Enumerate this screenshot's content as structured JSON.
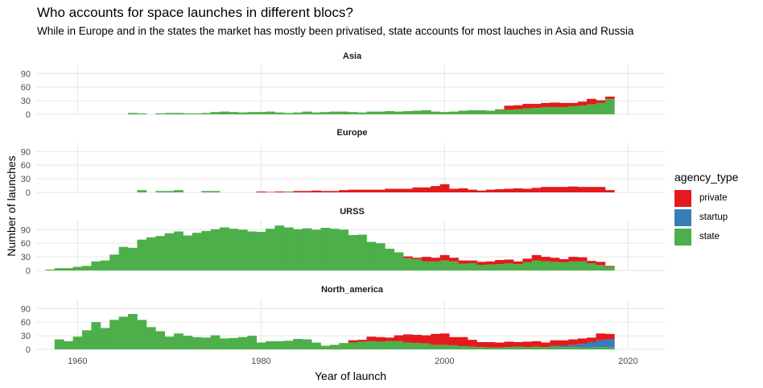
{
  "title": "Who accounts for space launches in different blocs?",
  "subtitle": "While in Europe and in the states the market has mostly been privatised, state accounts for most lauches in Asia and Russia",
  "colors": {
    "private": "#E41A1C",
    "startup": "#377EB8",
    "state": "#4DAF4A"
  },
  "chart_data": {
    "type": "bar",
    "stacked": true,
    "xlabel": "Year of launch",
    "ylabel": "Number of launches",
    "x_ticks": [
      1960,
      1980,
      2000,
      2020
    ],
    "y_ticks": [
      0,
      30,
      60,
      90
    ],
    "xlim": [
      1955.5,
      2024
    ],
    "ylim": [
      0,
      110
    ],
    "legend": {
      "title": "agency_type",
      "position": "right",
      "entries": [
        "private",
        "startup",
        "state"
      ]
    },
    "years": [
      1957,
      1958,
      1959,
      1960,
      1961,
      1962,
      1963,
      1964,
      1965,
      1966,
      1967,
      1968,
      1969,
      1970,
      1971,
      1972,
      1973,
      1974,
      1975,
      1976,
      1977,
      1978,
      1979,
      1980,
      1981,
      1982,
      1983,
      1984,
      1985,
      1986,
      1987,
      1988,
      1989,
      1990,
      1991,
      1992,
      1993,
      1994,
      1995,
      1996,
      1997,
      1998,
      1999,
      2000,
      2001,
      2002,
      2003,
      2004,
      2005,
      2006,
      2007,
      2008,
      2009,
      2010,
      2011,
      2012,
      2013,
      2014,
      2015,
      2016,
      2017,
      2018
    ],
    "panels": [
      {
        "name": "Asia",
        "series": [
          {
            "name": "state",
            "values": [
              0,
              0,
              0,
              0,
              0,
              0,
              0,
              0,
              0,
              3,
              2,
              0,
              2,
              3,
              3,
              2,
              2,
              3,
              5,
              6,
              5,
              4,
              5,
              5,
              6,
              4,
              3,
              4,
              6,
              4,
              5,
              6,
              6,
              5,
              4,
              6,
              6,
              7,
              6,
              7,
              8,
              9,
              6,
              5,
              6,
              8,
              9,
              9,
              8,
              10,
              10,
              11,
              13,
              14,
              16,
              16,
              16,
              18,
              19,
              22,
              25,
              34
            ]
          },
          {
            "name": "private",
            "values": [
              0,
              0,
              0,
              0,
              0,
              0,
              0,
              0,
              0,
              0,
              0,
              0,
              0,
              0,
              0,
              0,
              0,
              0,
              0,
              0,
              0,
              0,
              0,
              0,
              0,
              0,
              0,
              0,
              0,
              0,
              0,
              0,
              0,
              0,
              0,
              0,
              0,
              0,
              0,
              0,
              0,
              0,
              0,
              0,
              0,
              0,
              0,
              0,
              0,
              1,
              9,
              9,
              10,
              9,
              9,
              10,
              9,
              7,
              9,
              12,
              6,
              5
            ]
          },
          {
            "name": "startup",
            "values": [
              0,
              0,
              0,
              0,
              0,
              0,
              0,
              0,
              0,
              0,
              0,
              0,
              0,
              0,
              0,
              0,
              0,
              0,
              0,
              0,
              0,
              0,
              0,
              0,
              0,
              0,
              0,
              0,
              0,
              0,
              0,
              0,
              0,
              0,
              0,
              0,
              0,
              0,
              0,
              0,
              0,
              0,
              0,
              0,
              0,
              0,
              0,
              0,
              0,
              0,
              0,
              0,
              0,
              0,
              0,
              0,
              0,
              0,
              0,
              0,
              0,
              0
            ]
          }
        ]
      },
      {
        "name": "Europe",
        "series": [
          {
            "name": "state",
            "values": [
              0,
              0,
              0,
              0,
              0,
              0,
              0,
              0,
              0,
              0,
              5,
              0,
              3,
              3,
              5,
              0,
              0,
              3,
              3,
              0,
              0,
              0,
              0,
              0,
              0,
              0,
              2,
              0,
              0,
              0,
              0,
              0,
              0,
              0,
              0,
              0,
              0,
              0,
              0,
              0,
              0,
              0,
              0,
              0,
              0,
              0,
              0,
              0,
              0,
              0,
              0,
              0,
              0,
              0,
              0,
              0,
              0,
              0,
              0,
              0,
              0,
              0
            ]
          },
          {
            "name": "private",
            "values": [
              0,
              0,
              0,
              0,
              0,
              0,
              0,
              0,
              0,
              0,
              0,
              0,
              0,
              0,
              0,
              0,
              0,
              0,
              0,
              0,
              0,
              0,
              0,
              2,
              1,
              2,
              0,
              3,
              3,
              4,
              3,
              3,
              5,
              6,
              6,
              6,
              6,
              8,
              8,
              8,
              11,
              11,
              14,
              18,
              8,
              9,
              6,
              4,
              6,
              7,
              8,
              9,
              8,
              10,
              12,
              12,
              12,
              13,
              12,
              12,
              12,
              5
            ]
          },
          {
            "name": "startup",
            "values": [
              0,
              0,
              0,
              0,
              0,
              0,
              0,
              0,
              0,
              0,
              0,
              0,
              0,
              0,
              0,
              0,
              0,
              0,
              0,
              0,
              0,
              0,
              0,
              0,
              0,
              0,
              0,
              0,
              0,
              0,
              0,
              0,
              0,
              0,
              0,
              0,
              0,
              0,
              0,
              0,
              0,
              0,
              0,
              0,
              0,
              0,
              0,
              0,
              0,
              0,
              0,
              0,
              0,
              0,
              0,
              0,
              0,
              0,
              0,
              0,
              0,
              0
            ]
          }
        ]
      },
      {
        "name": "URSS",
        "series": [
          {
            "name": "state",
            "values": [
              2,
              5,
              5,
              8,
              10,
              20,
              22,
              35,
              52,
              50,
              68,
              73,
              76,
              82,
              86,
              77,
              83,
              87,
              91,
              95,
              92,
              90,
              86,
              85,
              92,
              99,
              95,
              91,
              93,
              90,
              94,
              92,
              90,
              78,
              79,
              63,
              60,
              48,
              40,
              27,
              25,
              20,
              20,
              22,
              20,
              15,
              16,
              12,
              13,
              14,
              16,
              14,
              18,
              22,
              20,
              19,
              18,
              20,
              20,
              16,
              12,
              8
            ]
          },
          {
            "name": "private",
            "values": [
              0,
              0,
              0,
              0,
              0,
              0,
              0,
              0,
              0,
              0,
              0,
              0,
              0,
              0,
              0,
              0,
              0,
              0,
              0,
              0,
              0,
              0,
              0,
              0,
              0,
              0,
              0,
              0,
              0,
              0,
              0,
              0,
              0,
              0,
              0,
              0,
              0,
              0,
              0,
              4,
              3,
              10,
              8,
              12,
              8,
              7,
              6,
              7,
              7,
              9,
              8,
              6,
              8,
              12,
              10,
              9,
              7,
              10,
              9,
              5,
              7,
              2
            ]
          },
          {
            "name": "startup",
            "values": [
              0,
              0,
              0,
              0,
              0,
              0,
              0,
              0,
              0,
              0,
              0,
              0,
              0,
              0,
              0,
              0,
              0,
              0,
              0,
              0,
              0,
              0,
              0,
              0,
              0,
              0,
              0,
              0,
              0,
              0,
              0,
              0,
              0,
              0,
              0,
              0,
              0,
              0,
              0,
              0,
              0,
              0,
              0,
              0,
              0,
              0,
              0,
              0,
              0,
              0,
              0,
              0,
              0,
              0,
              0,
              0,
              0,
              0,
              0,
              0,
              0,
              0
            ]
          }
        ]
      },
      {
        "name": "North_america",
        "series": [
          {
            "name": "state",
            "values": [
              0,
              22,
              18,
              28,
              42,
              60,
              47,
              65,
              72,
              78,
              65,
              49,
              40,
              28,
              35,
              30,
              27,
              26,
              31,
              24,
              25,
              27,
              30,
              15,
              18,
              18,
              19,
              23,
              22,
              15,
              8,
              10,
              14,
              15,
              17,
              18,
              17,
              18,
              18,
              15,
              14,
              13,
              10,
              10,
              9,
              7,
              6,
              5,
              4,
              4,
              5,
              6,
              5,
              6,
              5,
              6,
              5,
              5,
              4,
              4,
              5,
              4
            ]
          },
          {
            "name": "private",
            "values": [
              0,
              0,
              0,
              0,
              0,
              0,
              0,
              0,
              0,
              0,
              0,
              0,
              0,
              0,
              0,
              0,
              0,
              0,
              0,
              0,
              0,
              0,
              0,
              0,
              0,
              0,
              0,
              0,
              0,
              0,
              0,
              0,
              0,
              5,
              4,
              10,
              10,
              8,
              13,
              18,
              18,
              18,
              24,
              25,
              18,
              20,
              15,
              11,
              12,
              11,
              12,
              10,
              12,
              12,
              10,
              12,
              12,
              12,
              12,
              10,
              15,
              12
            ]
          },
          {
            "name": "startup",
            "values": [
              0,
              0,
              0,
              0,
              0,
              0,
              0,
              0,
              0,
              0,
              0,
              0,
              0,
              0,
              0,
              0,
              0,
              0,
              0,
              0,
              0,
              0,
              0,
              0,
              0,
              0,
              0,
              0,
              0,
              0,
              0,
              0,
              0,
              0,
              0,
              0,
              0,
              0,
              0,
              0,
              0,
              0,
              0,
              0,
              0,
              0,
              0,
              0,
              0,
              0,
              0,
              0,
              0,
              0,
              0,
              2,
              3,
              5,
              8,
              12,
              15,
              18
            ]
          }
        ]
      }
    ]
  }
}
